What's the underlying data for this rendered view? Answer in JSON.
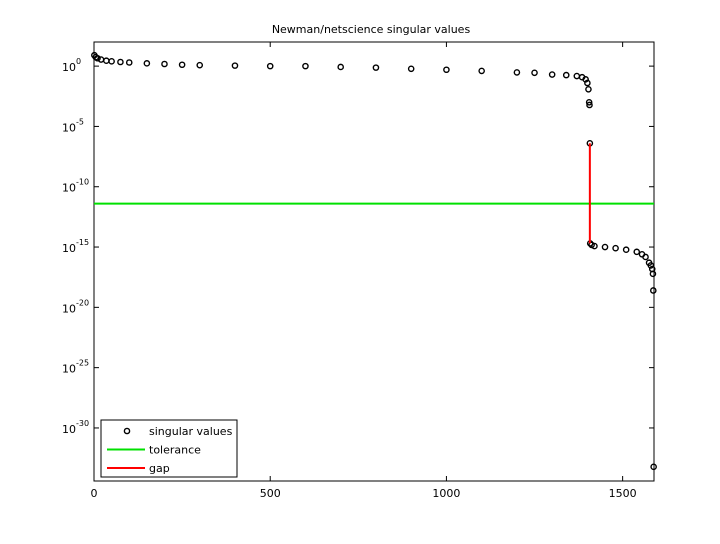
{
  "chart_data": {
    "type": "scatter",
    "title": "Newman/netscience singular values",
    "log_y": true,
    "legend_position": "lower left",
    "xlim": [
      0,
      1589
    ],
    "xticks": [
      0,
      500,
      1000,
      1500
    ],
    "ylim": [
      4e-35,
      100
    ],
    "yticks": [
      {
        "value": 1,
        "label": "10",
        "exponent": "0"
      },
      {
        "value": 1e-05,
        "label": "10",
        "exponent": "-5"
      },
      {
        "value": 1e-10,
        "label": "10",
        "exponent": "-10"
      },
      {
        "value": 1e-15,
        "label": "10",
        "exponent": "-15"
      },
      {
        "value": 1e-20,
        "label": "10",
        "exponent": "-20"
      },
      {
        "value": 1e-25,
        "label": "10",
        "exponent": "-25"
      },
      {
        "value": 1e-30,
        "label": "10",
        "exponent": "-30"
      }
    ],
    "series": [
      {
        "name": "singular values",
        "color": "#000000",
        "style": "marker",
        "x": [
          1,
          5,
          10,
          20,
          35,
          50,
          75,
          100,
          150,
          200,
          250,
          300,
          400,
          500,
          600,
          700,
          800,
          900,
          1000,
          1100,
          1200,
          1250,
          1300,
          1340,
          1370,
          1385,
          1395,
          1400,
          1403,
          1405,
          1406,
          1407,
          1408,
          1412,
          1420,
          1450,
          1480,
          1510,
          1540,
          1555,
          1565,
          1575,
          1580,
          1584,
          1586,
          1587,
          1588
        ],
        "values": [
          8,
          5.5,
          4.5,
          3.5,
          2.8,
          2.5,
          2.2,
          2,
          1.7,
          1.5,
          1.3,
          1.2,
          1.1,
          1,
          1,
          0.85,
          0.75,
          0.6,
          0.5,
          0.4,
          0.3,
          0.28,
          0.2,
          0.18,
          0.15,
          0.12,
          0.08,
          0.04,
          0.012,
          0.001,
          0.0006,
          4e-07,
          2e-15,
          1.5e-15,
          1.2e-15,
          1e-15,
          8e-16,
          6e-16,
          4e-16,
          2.5e-16,
          1.5e-16,
          5e-17,
          3e-17,
          1.5e-17,
          6e-18,
          2.5e-19,
          6e-34
        ]
      },
      {
        "name": "tolerance",
        "color": "#00e000",
        "style": "line",
        "x": [
          0,
          1589
        ],
        "values": [
          4e-12,
          4e-12
        ]
      },
      {
        "name": "gap",
        "color": "#ff0000",
        "style": "line",
        "x": [
          1407,
          1407
        ],
        "values": [
          4e-07,
          2e-15
        ]
      }
    ]
  }
}
